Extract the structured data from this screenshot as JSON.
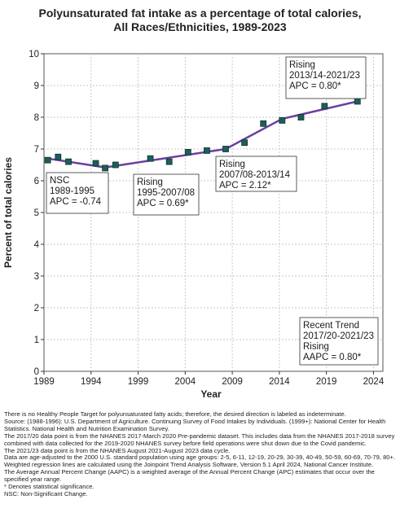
{
  "chart_data": {
    "type": "line",
    "title": [
      "Polyunsaturated fat intake as a percentage of total calories,",
      "All Races/Ethnicities,  1989-2023"
    ],
    "xlabel": "Year",
    "ylabel": "Percent of total calories",
    "xlim": [
      1989,
      2025
    ],
    "ylim": [
      0,
      10
    ],
    "xticks": [
      1989,
      1994,
      1999,
      2004,
      2009,
      2014,
      2019,
      2024
    ],
    "yticks": [
      0,
      1,
      2,
      3,
      4,
      5,
      6,
      7,
      8,
      9,
      10
    ],
    "grid": true,
    "colors": {
      "trend_line": "#6a3fa0",
      "marker": "#1e5e58",
      "marker_edge": "#0d3532"
    },
    "observed": {
      "x": [
        1989.4,
        1990.5,
        1991.6,
        1994.5,
        1995.5,
        1996.6,
        2000.3,
        2002.3,
        2004.3,
        2006.3,
        2008.3,
        2010.3,
        2012.3,
        2014.3,
        2016.3,
        2018.8,
        2022.3
      ],
      "y": [
        6.65,
        6.75,
        6.6,
        6.55,
        6.4,
        6.5,
        6.7,
        6.6,
        6.9,
        6.95,
        7.0,
        7.2,
        7.8,
        7.9,
        8.0,
        8.35,
        8.5
      ]
    },
    "trend": {
      "x": [
        1989.4,
        1995.5,
        2008.3,
        2014.3,
        2022.3
      ],
      "y": [
        6.7,
        6.42,
        7.0,
        7.95,
        8.5
      ]
    },
    "annotations": [
      {
        "lines": [
          "NSC",
          "1989-1995",
          "APC = -0.74"
        ]
      },
      {
        "lines": [
          "Rising",
          "1995-2007/08",
          "APC =  0.69*"
        ]
      },
      {
        "lines": [
          "Rising",
          "2007/08-2013/14",
          "APC =  2.12*"
        ]
      },
      {
        "lines": [
          "Rising",
          "2013/14-2021/23",
          "APC =  0.80*"
        ]
      },
      {
        "lines": [
          "Recent Trend",
          "2017/20-2021/23",
          "Rising",
          "AAPC =  0.80*"
        ]
      }
    ]
  },
  "footnotes": [
    "There is no Healthy People Target for polyunsaturated fatty acids; therefore, the desired direction is labeled as indeterminate.",
    "Source: (1988-1996): U.S. Department of Agriculture. Continuing Survey of Food Intakes by Individuals. (1999+): National Center for Health Statistics. National Health and Nutrition Examination Survey.",
    "The 2017/20 data point is from the NHANES 2017-March 2020 Pre-pandemic dataset. This includes data from the NHANES 2017-2018 survey combined with data collected for the 2019-2020 NHANES survey before field operations were shut down due to the Covid pandemic.",
    "The 2021/23 data point is from the NHANES August 2021-August 2023 data cycle.",
    "Data are age-adjusted to the 2000 U.S. standard population using age groups: 2-5, 6-11, 12-19, 20-29, 30-39, 40-49, 50-59, 60-69, 70-79, 80+.",
    "Weighted regression lines are calculated using the Joinpoint Trend Analysis Software, Version 5.1 April 2024, National Cancer Institute.",
    "The Average Annual Percent Change (AAPC) is a weighted average of the Annual Percent Change (APC) estimates that occur over the specified year range.",
    "* Denotes statistical significance.",
    "NSC: Non-Significant Change."
  ]
}
